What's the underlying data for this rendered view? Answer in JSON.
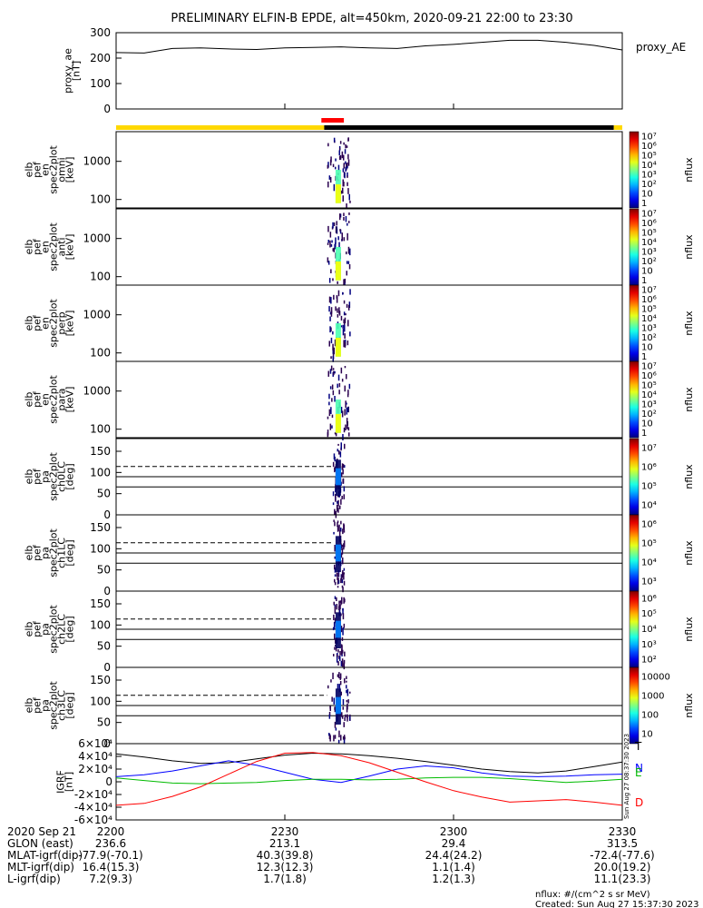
{
  "title": "PRELIMINARY ELFIN-B EPDE, alt=450km, 2020-09-21 22:00 to 23:30",
  "chart_data": [
    {
      "type": "line",
      "id": "proxy_ae",
      "ylabel_lines": [
        "proxy_ae",
        "[nT]"
      ],
      "legend": "proxy_AE",
      "ylim": [
        0,
        300
      ],
      "yticks": [
        "0",
        "100",
        "200",
        "300"
      ],
      "x_minutes": [
        0,
        5,
        10,
        15,
        20,
        25,
        30,
        35,
        40,
        45,
        50,
        55,
        60,
        65,
        70,
        75,
        80,
        85,
        90
      ],
      "values": [
        222,
        220,
        238,
        240,
        236,
        234,
        240,
        242,
        244,
        240,
        238,
        248,
        254,
        262,
        270,
        270,
        262,
        250,
        232
      ],
      "color": "#000000"
    },
    {
      "type": "heatmap",
      "id": "en_omni",
      "ylabel_lines": [
        "elb",
        "pef",
        "en",
        "spec2plot",
        "omni",
        "[keV]"
      ],
      "yscale": "log",
      "yticks": [
        "100",
        "1000"
      ],
      "colorbar_label": "nflux",
      "colorbar_ticks": [
        "1",
        "10",
        "10²",
        "10³",
        "10⁴",
        "10⁵",
        "10⁶",
        "10⁷"
      ],
      "active_interval_minutes": [
        37.5,
        41.5
      ],
      "peak_minutes": 39.5
    },
    {
      "type": "heatmap",
      "id": "en_anti",
      "ylabel_lines": [
        "elb",
        "pef",
        "en",
        "spec2plot",
        "anti",
        "[keV]"
      ],
      "yscale": "log",
      "yticks": [
        "100",
        "1000"
      ],
      "colorbar_label": "nflux",
      "colorbar_ticks": [
        "1",
        "10",
        "10²",
        "10³",
        "10⁴",
        "10⁵",
        "10⁶",
        "10⁷"
      ],
      "active_interval_minutes": [
        37.5,
        41.5
      ],
      "peak_minutes": 39.5
    },
    {
      "type": "heatmap",
      "id": "en_perp",
      "ylabel_lines": [
        "elb",
        "pef",
        "en",
        "spec2plot",
        "perp",
        "[keV]"
      ],
      "yscale": "log",
      "yticks": [
        "100",
        "1000"
      ],
      "colorbar_label": "nflux",
      "colorbar_ticks": [
        "1",
        "10",
        "10²",
        "10³",
        "10⁴",
        "10⁵",
        "10⁶",
        "10⁷"
      ],
      "active_interval_minutes": [
        37.5,
        41.5
      ],
      "peak_minutes": 39.5
    },
    {
      "type": "heatmap",
      "id": "en_para",
      "ylabel_lines": [
        "elb",
        "pef",
        "en",
        "spec2plot",
        "para",
        "[keV]"
      ],
      "yscale": "log",
      "yticks": [
        "100",
        "1000"
      ],
      "colorbar_label": "nflux",
      "colorbar_ticks": [
        "1",
        "10",
        "10²",
        "10³",
        "10⁴",
        "10⁵",
        "10⁶",
        "10⁷"
      ],
      "active_interval_minutes": [
        37.5,
        41.5
      ],
      "peak_minutes": 39.5
    },
    {
      "type": "heatmap",
      "id": "pa_ch0",
      "ylabel_lines": [
        "elb",
        "pef",
        "pa",
        "spec2plot",
        "ch0LC",
        "[deg]"
      ],
      "ylim": [
        0,
        180
      ],
      "yticks": [
        "0",
        "50",
        "100",
        "150"
      ],
      "colorbar_label": "nflux",
      "colorbar_ticks": [
        "10⁴",
        "10⁵",
        "10⁶",
        "10⁷"
      ],
      "reference_lines_deg": [
        90,
        66,
        114
      ],
      "active_interval_minutes": [
        38.5,
        40.5
      ],
      "peak_minutes": 39.5
    },
    {
      "type": "heatmap",
      "id": "pa_ch1",
      "ylabel_lines": [
        "elb",
        "pef",
        "pa",
        "spec2plot",
        "ch1LC",
        "[deg]"
      ],
      "ylim": [
        0,
        180
      ],
      "yticks": [
        "0",
        "50",
        "100",
        "150"
      ],
      "colorbar_label": "nflux",
      "colorbar_ticks": [
        "10³",
        "10⁴",
        "10⁵",
        "10⁶"
      ],
      "reference_lines_deg": [
        90,
        66,
        114
      ],
      "active_interval_minutes": [
        38.5,
        40.5
      ],
      "peak_minutes": 39.5
    },
    {
      "type": "heatmap",
      "id": "pa_ch2",
      "ylabel_lines": [
        "elb",
        "pef",
        "pa",
        "spec2plot",
        "ch2LC",
        "[deg]"
      ],
      "ylim": [
        0,
        180
      ],
      "yticks": [
        "0",
        "50",
        "100",
        "150"
      ],
      "colorbar_label": "nflux",
      "colorbar_ticks": [
        "10²",
        "10³",
        "10⁴",
        "10⁵",
        "10⁶"
      ],
      "reference_lines_deg": [
        90,
        66,
        114
      ],
      "active_interval_minutes": [
        38.5,
        40.5
      ],
      "peak_minutes": 39.5
    },
    {
      "type": "heatmap",
      "id": "pa_ch3",
      "ylabel_lines": [
        "elb",
        "pef",
        "pa",
        "spec2plot",
        "ch3LC",
        "[deg]"
      ],
      "ylim": [
        0,
        180
      ],
      "yticks": [
        "0",
        "50",
        "100",
        "150"
      ],
      "colorbar_label": "nflux",
      "colorbar_ticks": [
        "10",
        "100",
        "1000",
        "10000"
      ],
      "reference_lines_deg": [
        90,
        66,
        114
      ],
      "active_interval_minutes": [
        37.5,
        41.5
      ],
      "peak_minutes": 39.5
    },
    {
      "type": "line",
      "id": "igrf",
      "ylabel_lines": [
        "IGRF",
        "[nT]"
      ],
      "ylim": [
        -60000,
        60000
      ],
      "yticks": [
        "-6×10⁴",
        "-4×10⁴",
        "-2×10⁴",
        "0",
        "2×10⁴",
        "4×10⁴",
        "6×10⁴"
      ],
      "x_minutes": [
        0,
        5,
        10,
        15,
        20,
        25,
        30,
        35,
        40,
        45,
        50,
        55,
        60,
        65,
        70,
        75,
        80,
        85,
        90
      ],
      "series": [
        {
          "name": "T",
          "color": "#000000",
          "values": [
            44000,
            39000,
            33000,
            29000,
            30000,
            36000,
            42000,
            45000,
            44000,
            41000,
            37000,
            32000,
            26000,
            20000,
            16000,
            14000,
            17000,
            24000,
            31000
          ]
        },
        {
          "name": "N",
          "color": "#0000ff",
          "values": [
            8000,
            11000,
            17000,
            25000,
            33000,
            26000,
            15000,
            4000,
            -1000,
            9000,
            20000,
            25000,
            22000,
            14000,
            9000,
            8000,
            9000,
            11000,
            12000
          ]
        },
        {
          "name": "E",
          "color": "#00bb00",
          "values": [
            6000,
            2000,
            -2000,
            -3000,
            -2000,
            -1000,
            2000,
            4000,
            4000,
            3000,
            4000,
            6000,
            7000,
            7000,
            5000,
            2000,
            -1000,
            1000,
            4000
          ]
        },
        {
          "name": "D",
          "color": "#ff0000",
          "values": [
            -37000,
            -34000,
            -23000,
            -8000,
            12000,
            32000,
            45000,
            46000,
            41000,
            30000,
            15000,
            0,
            -14000,
            -24000,
            -32000,
            -30000,
            -28000,
            -32000,
            -37000
          ]
        }
      ]
    }
  ],
  "time_bar": {
    "segments": [
      {
        "from_minutes": 0,
        "to_minutes": 37,
        "color": "#ffd800"
      },
      {
        "from_minutes": 37,
        "to_minutes": 88.5,
        "color": "#000000"
      },
      {
        "from_minutes": 88.5,
        "to_minutes": 90,
        "color": "#ffd800"
      }
    ],
    "science_zone": {
      "from_minutes": 36.5,
      "to_minutes": 40.5,
      "color": "#ff0000"
    }
  },
  "x_ticks": [
    "2200",
    "2230",
    "2300",
    "2330"
  ],
  "ephemeris": {
    "rows": [
      {
        "label": "2020 Sep 21",
        "values": [
          "2200",
          "2230",
          "2300",
          "2330"
        ]
      },
      {
        "label": "GLON (east)",
        "values": [
          "236.6",
          "213.1",
          "29.4",
          "313.5"
        ]
      },
      {
        "label": "MLAT-igrf(dip)",
        "values": [
          "-77.9(-70.1)",
          "40.3(39.8)",
          "24.4(24.2)",
          "-72.4(-77.6)"
        ]
      },
      {
        "label": "MLT-igrf(dip)",
        "values": [
          "16.4(15.3)",
          "12.3(12.3)",
          "1.1(1.4)",
          "20.0(19.2)"
        ]
      },
      {
        "label": "L-igrf(dip)",
        "values": [
          "7.2(9.3)",
          "1.7(1.8)",
          "1.2(1.3)",
          "11.1(23.3)"
        ]
      }
    ]
  },
  "footer": {
    "units": "nflux: #/(cm^2 s sr MeV)",
    "created": "Created: Sun Aug 27 15:37:30 2023",
    "side_stamp": "Sun Aug 27 08:37:30 2023"
  }
}
